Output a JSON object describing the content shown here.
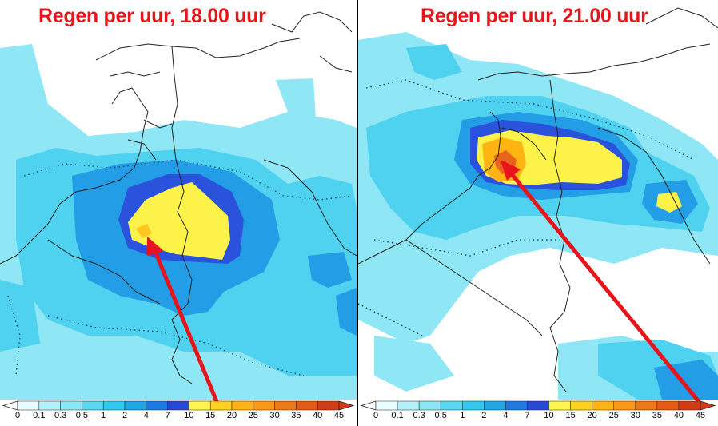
{
  "panels": [
    {
      "title": "Regen per uur, 18.00 uur"
    },
    {
      "title": "Regen per uur, 21.00 uur"
    }
  ],
  "legend": {
    "ticks": [
      "0",
      "0.1",
      "0.3",
      "0.5",
      "1",
      "2",
      "4",
      "7",
      "10",
      "15",
      "20",
      "25",
      "30",
      "35",
      "40",
      "45"
    ],
    "colors": [
      "#e6fcff",
      "#b4f0fa",
      "#8ce6f5",
      "#5ad7f0",
      "#30c8ee",
      "#1ea8e8",
      "#1e78e1",
      "#2848d8",
      "#fff44c",
      "#ffd21e",
      "#ffb414",
      "#ff9614",
      "#f07814",
      "#e65a14",
      "#d23c14"
    ]
  },
  "colors": {
    "title": "#e8141c",
    "arrow": "#e8141c",
    "border": "#222222"
  }
}
